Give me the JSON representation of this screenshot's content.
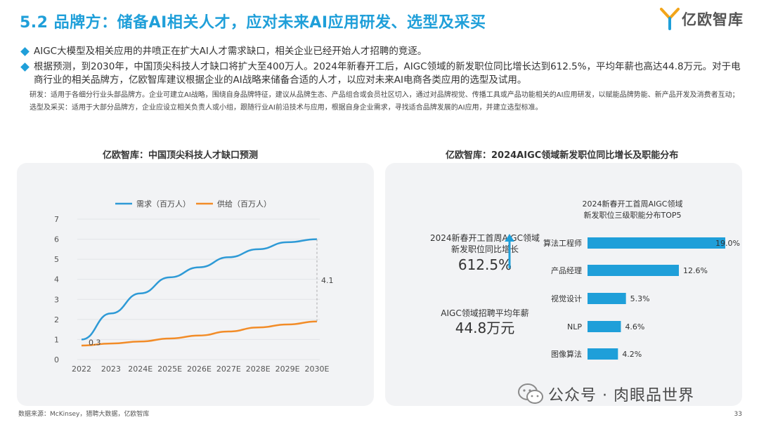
{
  "header": {
    "title": "5.2 品牌方：储备AI相关人才，应对未来AI应用研发、选型及采买",
    "logo_text": "亿欧智库"
  },
  "bullets": [
    "AIGC大模型及相关应用的井喷正在扩大AI人才需求缺口，相关企业已经开始人才招聘的竞逐。",
    "根据预测，到2030年，中国顶尖科技人才缺口将扩大至400万人。2024年新春开工后，AIGC领域的新发职位同比增长达到612.5%，平均年薪也高达44.8万元。对于电商行业的相关品牌方，亿欧智库建议根据企业的AI战略来储备合适的人才，以应对未来AI电商各类应用的选型及试用。"
  ],
  "notes": [
    "研发：适用于各细分行业头部品牌方。企业可建立AI战略，围绕自身品牌特征，建议从品牌生态、产品组合或会员社区切入，通过对品牌视觉、传播工具或产品功能相关的AI应用研发，以赋能品牌势能、新产品开发及消费者互动；",
    "选型及采买：适用于大部分品牌方，企业应设立相关负责人或小组，跟随行业AI前沿技术与应用，根据自身企业需求，寻找适合品牌发展的AI应用，并建立选型标准。"
  ],
  "left_panel": {
    "title": "亿欧智库：中国顶尖科技人才缺口预测"
  },
  "right_panel": {
    "title": "亿欧智库：2024AIGC领域新发职位同比增长及职能分布",
    "stat1_label_line1": "2024新春开工首周AIGC领域",
    "stat1_label_line2": "新发职位同比增长",
    "stat1_value": "612.5%",
    "stat2_label": "AIGC领域招聘平均年薪",
    "stat2_value": "44.8万元"
  },
  "colors": {
    "accent": "#1f9fd9",
    "demand": "#2e9ad6",
    "supply": "#f28c28",
    "bar": "#1f9fd9"
  },
  "chart_data": [
    {
      "type": "line",
      "x": [
        "2022",
        "2023",
        "2024E",
        "2025E",
        "2026E",
        "2027E",
        "2028E",
        "2029E",
        "2030E"
      ],
      "series": [
        {
          "name": "需求（百万人）",
          "values": [
            1.0,
            2.3,
            3.3,
            4.1,
            4.6,
            5.1,
            5.5,
            5.85,
            6.0
          ]
        },
        {
          "name": "供给（百万人）",
          "values": [
            0.7,
            0.8,
            0.9,
            1.05,
            1.2,
            1.4,
            1.6,
            1.75,
            1.9
          ]
        }
      ],
      "ylim": [
        0,
        7
      ],
      "yticks": [
        "0",
        "1",
        "2",
        "3",
        "4",
        "5",
        "6",
        "7"
      ],
      "annotations": [
        {
          "label": "0.3",
          "at": "2022"
        },
        {
          "label": "4.1",
          "at": "2030E"
        }
      ],
      "legend": "top-center",
      "grid": true
    },
    {
      "type": "bar",
      "orientation": "horizontal",
      "title_line1": "2024新春开工首周AIGC领域",
      "title_line2": "新发职位三级职能分布TOP5",
      "categories": [
        "算法工程师",
        "产品经理",
        "视觉设计",
        "NLP",
        "图像算法"
      ],
      "values": [
        19.0,
        12.6,
        5.3,
        4.6,
        4.2
      ],
      "labels": [
        "19.0%",
        "12.6%",
        "5.3%",
        "4.6%",
        "4.2%"
      ]
    }
  ],
  "footer": {
    "source": "数据来源：McKinsey，猎聘大数据，亿欧智库",
    "page": "33",
    "watermark": "公众号 · 肉眼品世界"
  }
}
